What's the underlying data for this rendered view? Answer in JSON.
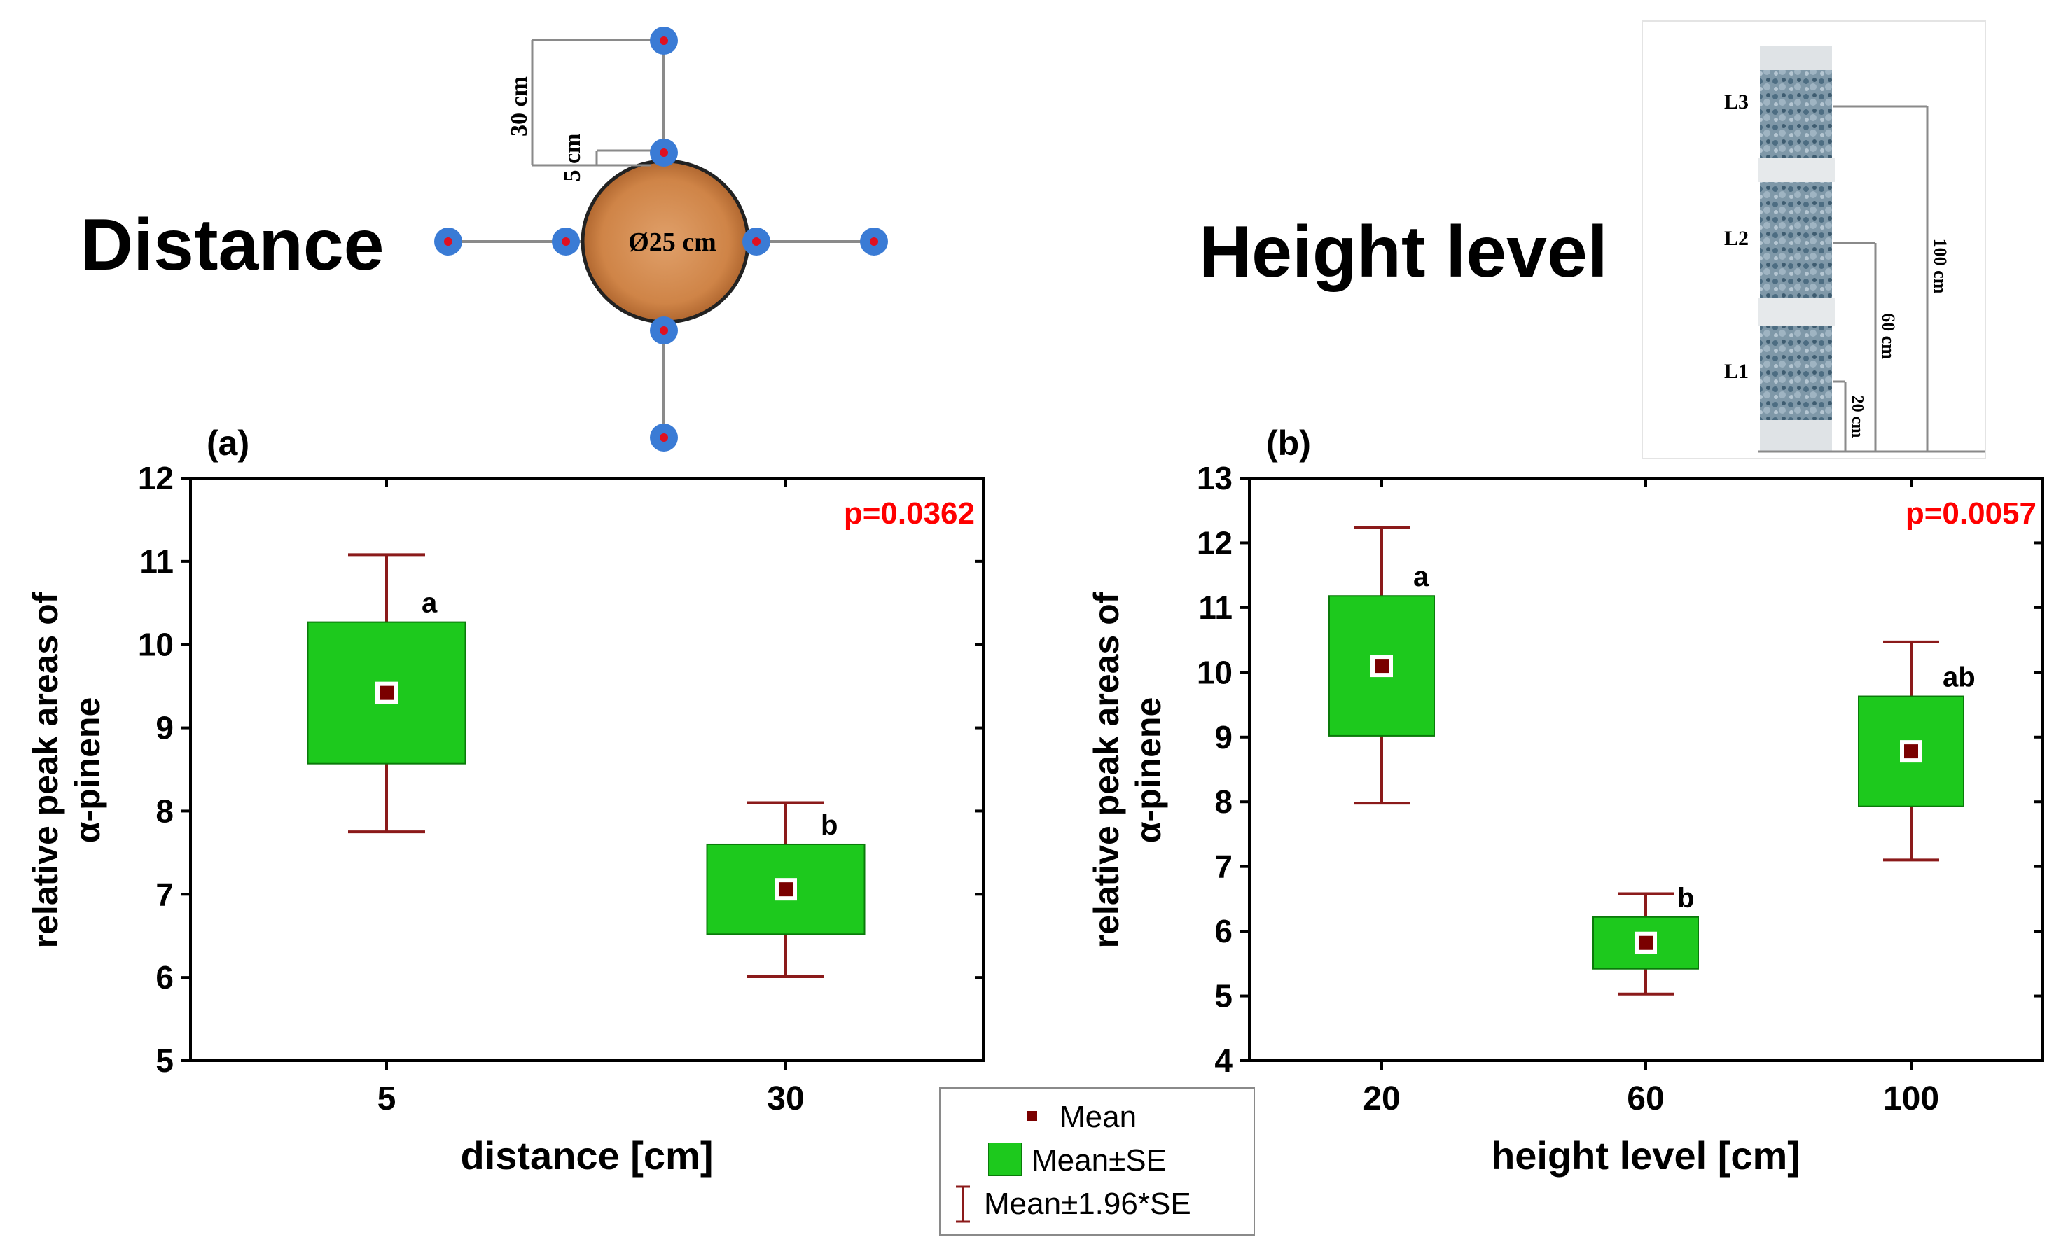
{
  "diagram_distance": {
    "title": "Distance",
    "stem_label": "Ø25 cm",
    "dim_outer": "30 cm",
    "dim_inner": "5 cm"
  },
  "diagram_height": {
    "title": "Height level",
    "levels": [
      "L3",
      "L2",
      "L1"
    ],
    "dims": [
      "100 cm",
      "60 cm",
      "20 cm"
    ]
  },
  "chart_data": [
    {
      "type": "box",
      "panel_label": "(a)",
      "xlabel": "distance [cm]",
      "ylabel": [
        "relative peak areas of",
        "α-pinene"
      ],
      "ylim": [
        5,
        12
      ],
      "yticks": [
        "5",
        "6",
        "7",
        "8",
        "9",
        "10",
        "11",
        "12"
      ],
      "categories": [
        "5",
        "30"
      ],
      "mean": [
        9.42,
        7.06
      ],
      "se_low": [
        8.57,
        6.52
      ],
      "se_high": [
        10.27,
        7.6
      ],
      "ci_low": [
        7.75,
        6.01
      ],
      "ci_high": [
        11.08,
        8.1
      ],
      "group_letters": [
        "a",
        "b"
      ],
      "p_value": "p=0.0362"
    },
    {
      "type": "box",
      "panel_label": "(b)",
      "xlabel": "height level [cm]",
      "ylabel": [
        "relative peak areas of",
        "α-pinene"
      ],
      "ylim": [
        4,
        13
      ],
      "yticks": [
        "4",
        "5",
        "6",
        "7",
        "8",
        "9",
        "10",
        "11",
        "12",
        "13"
      ],
      "categories": [
        "20",
        "60",
        "100"
      ],
      "mean": [
        10.1,
        5.82,
        8.78
      ],
      "se_low": [
        9.02,
        5.42,
        7.93
      ],
      "se_high": [
        11.18,
        6.22,
        9.63
      ],
      "ci_low": [
        7.98,
        5.03,
        7.1
      ],
      "ci_high": [
        12.24,
        6.58,
        10.47
      ],
      "group_letters": [
        "a",
        "b",
        "ab"
      ],
      "p_value": "p=0.0057"
    }
  ],
  "legend": {
    "items": [
      "Mean",
      "Mean±SE",
      "Mean±1.96*SE"
    ]
  },
  "colors": {
    "box_fill": "#1dc91d",
    "box_stroke": "#0a7a0a",
    "whisker": "#8b1a1a",
    "mean_marker": "#7a0000",
    "p_value": "#ff0000",
    "wood": "#d2874a",
    "sensor_blue": "#3a7bd5",
    "sensor_red": "#e01020"
  }
}
